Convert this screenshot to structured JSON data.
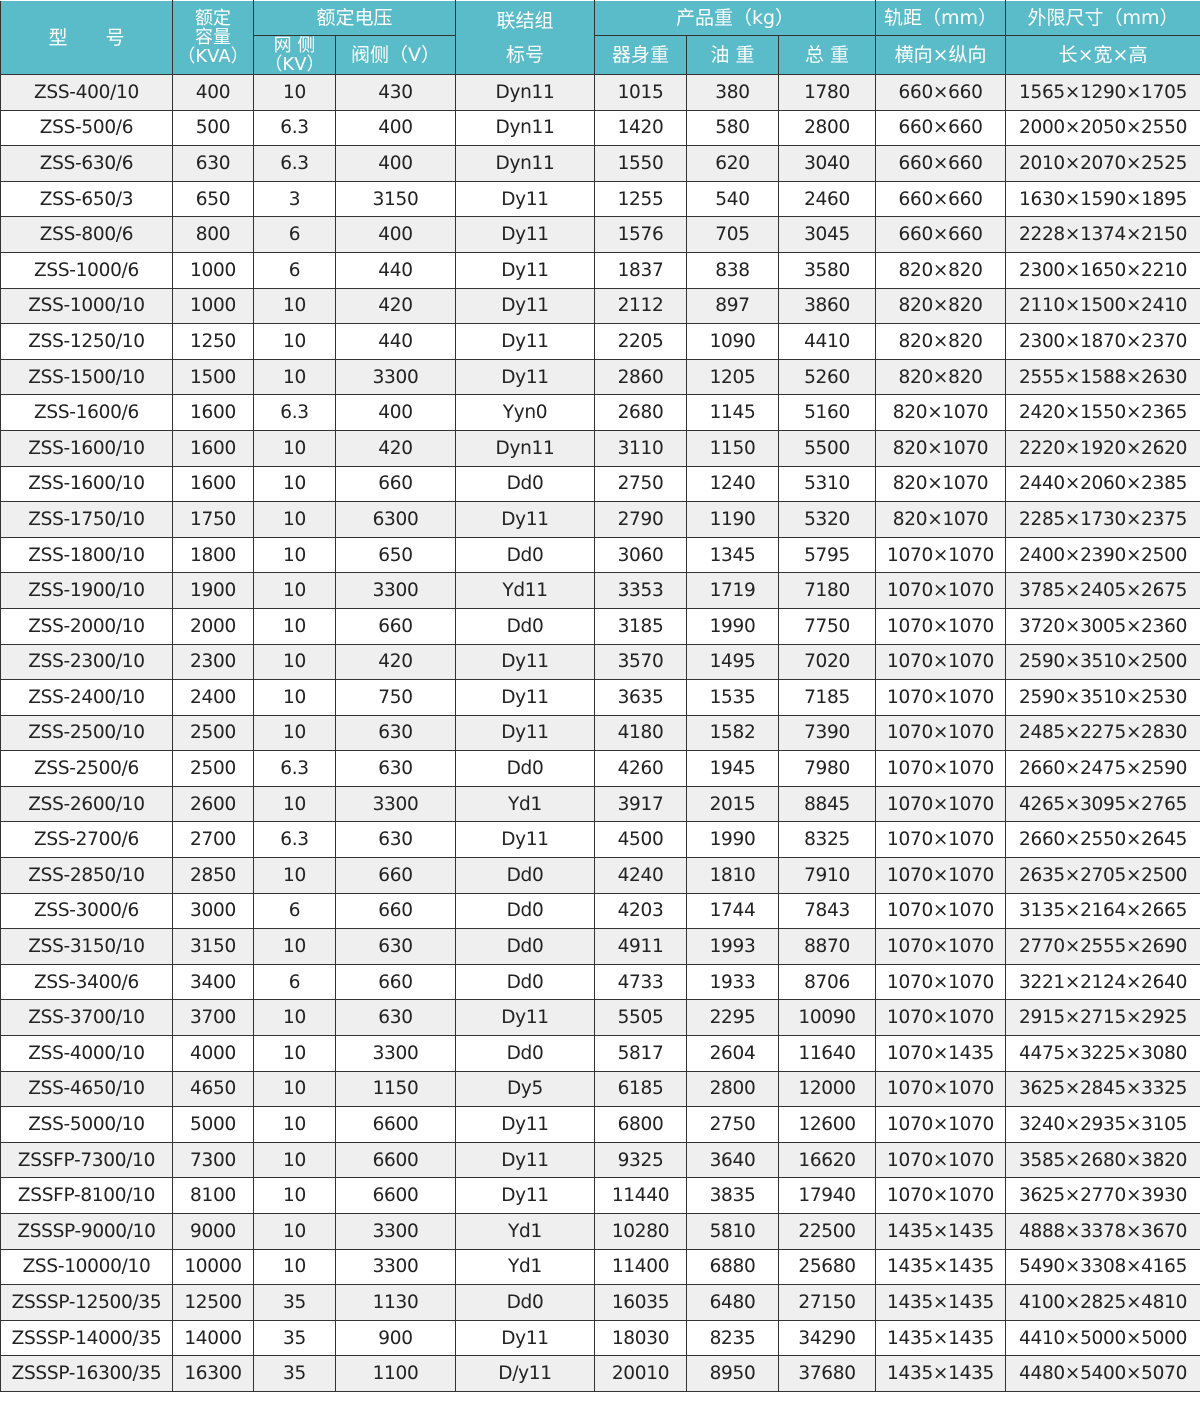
{
  "header": {
    "model": "型　　号",
    "capacity": [
      "额定",
      "容量",
      "（KVA）"
    ],
    "voltage": "额定电压",
    "grid_side": [
      "网 侧",
      "（KV）"
    ],
    "valve_side": "阀侧（V）",
    "connection": [
      "联结组",
      "标号"
    ],
    "weight": "产品重（kg）",
    "body_weight": "器身重",
    "oil_weight": "油 重",
    "total_weight": "总 重",
    "gauge": "轨距（mm）",
    "gauge_sub": "横向×纵向",
    "dims": "外限尺寸（mm）",
    "dims_sub": "长×宽×高"
  },
  "colors": {
    "header_bg": "#5bbcc9",
    "row_alt": "#efefef"
  },
  "rows": [
    [
      "ZSS-400/10",
      "400",
      "10",
      "430",
      "Dyn11",
      "1015",
      "380",
      "1780",
      "660×660",
      "1565×1290×1705"
    ],
    [
      "ZSS-500/6",
      "500",
      "6.3",
      "400",
      "Dyn11",
      "1420",
      "580",
      "2800",
      "660×660",
      "2000×2050×2550"
    ],
    [
      "ZSS-630/6",
      "630",
      "6.3",
      "400",
      "Dyn11",
      "1550",
      "620",
      "3040",
      "660×660",
      "2010×2070×2525"
    ],
    [
      "ZSS-650/3",
      "650",
      "3",
      "3150",
      "Dy11",
      "1255",
      "540",
      "2460",
      "660×660",
      "1630×1590×1895"
    ],
    [
      "ZSS-800/6",
      "800",
      "6",
      "400",
      "Dy11",
      "1576",
      "705",
      "3045",
      "660×660",
      "2228×1374×2150"
    ],
    [
      "ZSS-1000/6",
      "1000",
      "6",
      "440",
      "Dy11",
      "1837",
      "838",
      "3580",
      "820×820",
      "2300×1650×2210"
    ],
    [
      "ZSS-1000/10",
      "1000",
      "10",
      "420",
      "Dy11",
      "2112",
      "897",
      "3860",
      "820×820",
      "2110×1500×2410"
    ],
    [
      "ZSS-1250/10",
      "1250",
      "10",
      "440",
      "Dy11",
      "2205",
      "1090",
      "4410",
      "820×820",
      "2300×1870×2370"
    ],
    [
      "ZSS-1500/10",
      "1500",
      "10",
      "3300",
      "Dy11",
      "2860",
      "1205",
      "5260",
      "820×820",
      "2555×1588×2630"
    ],
    [
      "ZSS-1600/6",
      "1600",
      "6.3",
      "400",
      "Yyn0",
      "2680",
      "1145",
      "5160",
      "820×1070",
      "2420×1550×2365"
    ],
    [
      "ZSS-1600/10",
      "1600",
      "10",
      "420",
      "Dyn11",
      "3110",
      "1150",
      "5500",
      "820×1070",
      "2220×1920×2620"
    ],
    [
      "ZSS-1600/10",
      "1600",
      "10",
      "660",
      "Dd0",
      "2750",
      "1240",
      "5310",
      "820×1070",
      "2440×2060×2385"
    ],
    [
      "ZSS-1750/10",
      "1750",
      "10",
      "6300",
      "Dy11",
      "2790",
      "1190",
      "5320",
      "820×1070",
      "2285×1730×2375"
    ],
    [
      "ZSS-1800/10",
      "1800",
      "10",
      "650",
      "Dd0",
      "3060",
      "1345",
      "5795",
      "1070×1070",
      "2400×2390×2500"
    ],
    [
      "ZSS-1900/10",
      "1900",
      "10",
      "3300",
      "Yd11",
      "3353",
      "1719",
      "7180",
      "1070×1070",
      "3785×2405×2675"
    ],
    [
      "ZSS-2000/10",
      "2000",
      "10",
      "660",
      "Dd0",
      "3185",
      "1990",
      "7750",
      "1070×1070",
      "3720×3005×2360"
    ],
    [
      "ZSS-2300/10",
      "2300",
      "10",
      "420",
      "Dy11",
      "3570",
      "1495",
      "7020",
      "1070×1070",
      "2590×3510×2500"
    ],
    [
      "ZSS-2400/10",
      "2400",
      "10",
      "750",
      "Dy11",
      "3635",
      "1535",
      "7185",
      "1070×1070",
      "2590×3510×2530"
    ],
    [
      "ZSS-2500/10",
      "2500",
      "10",
      "630",
      "Dy11",
      "4180",
      "1582",
      "7390",
      "1070×1070",
      "2485×2275×2830"
    ],
    [
      "ZSS-2500/6",
      "2500",
      "6.3",
      "630",
      "Dd0",
      "4260",
      "1945",
      "7980",
      "1070×1070",
      "2660×2475×2590"
    ],
    [
      "ZSS-2600/10",
      "2600",
      "10",
      "3300",
      "Yd1",
      "3917",
      "2015",
      "8845",
      "1070×1070",
      "4265×3095×2765"
    ],
    [
      "ZSS-2700/6",
      "2700",
      "6.3",
      "630",
      "Dy11",
      "4500",
      "1990",
      "8325",
      "1070×1070",
      "2660×2550×2645"
    ],
    [
      "ZSS-2850/10",
      "2850",
      "10",
      "660",
      "Dd0",
      "4240",
      "1810",
      "7910",
      "1070×1070",
      "2635×2705×2500"
    ],
    [
      "ZSS-3000/6",
      "3000",
      "6",
      "660",
      "Dd0",
      "4203",
      "1744",
      "7843",
      "1070×1070",
      "3135×2164×2665"
    ],
    [
      "ZSS-3150/10",
      "3150",
      "10",
      "630",
      "Dd0",
      "4911",
      "1993",
      "8870",
      "1070×1070",
      "2770×2555×2690"
    ],
    [
      "ZSS-3400/6",
      "3400",
      "6",
      "660",
      "Dd0",
      "4733",
      "1933",
      "8706",
      "1070×1070",
      "3221×2124×2640"
    ],
    [
      "ZSS-3700/10",
      "3700",
      "10",
      "630",
      "Dy11",
      "5505",
      "2295",
      "10090",
      "1070×1070",
      "2915×2715×2925"
    ],
    [
      "ZSS-4000/10",
      "4000",
      "10",
      "3300",
      "Dd0",
      "5817",
      "2604",
      "11640",
      "1070×1435",
      "4475×3225×3080"
    ],
    [
      "ZSS-4650/10",
      "4650",
      "10",
      "1150",
      "Dy5",
      "6185",
      "2800",
      "12000",
      "1070×1070",
      "3625×2845×3325"
    ],
    [
      "ZSS-5000/10",
      "5000",
      "10",
      "6600",
      "Dy11",
      "6800",
      "2750",
      "12600",
      "1070×1070",
      "3240×2935×3105"
    ],
    [
      "ZSSFP-7300/10",
      "7300",
      "10",
      "6600",
      "Dy11",
      "9325",
      "3640",
      "16620",
      "1070×1070",
      "3585×2680×3820"
    ],
    [
      "ZSSFP-8100/10",
      "8100",
      "10",
      "6600",
      "Dy11",
      "11440",
      "3835",
      "17940",
      "1070×1070",
      "3625×2770×3930"
    ],
    [
      "ZSSSP-9000/10",
      "9000",
      "10",
      "3300",
      "Yd1",
      "10280",
      "5810",
      "22500",
      "1435×1435",
      "4888×3378×3670"
    ],
    [
      "ZSS-10000/10",
      "10000",
      "10",
      "3300",
      "Yd1",
      "11400",
      "6880",
      "25680",
      "1435×1435",
      "5490×3308×4165"
    ],
    [
      "ZSSSP-12500/35",
      "12500",
      "35",
      "1130",
      "Dd0",
      "16035",
      "6480",
      "27150",
      "1435×1435",
      "4100×2825×4810"
    ],
    [
      "ZSSSP-14000/35",
      "14000",
      "35",
      "900",
      "Dy11",
      "18030",
      "8235",
      "34290",
      "1435×1435",
      "4410×5000×5000"
    ],
    [
      "ZSSSP-16300/35",
      "16300",
      "35",
      "1100",
      "D/y11",
      "20010",
      "8950",
      "37680",
      "1435×1435",
      "4480×5400×5070"
    ]
  ]
}
